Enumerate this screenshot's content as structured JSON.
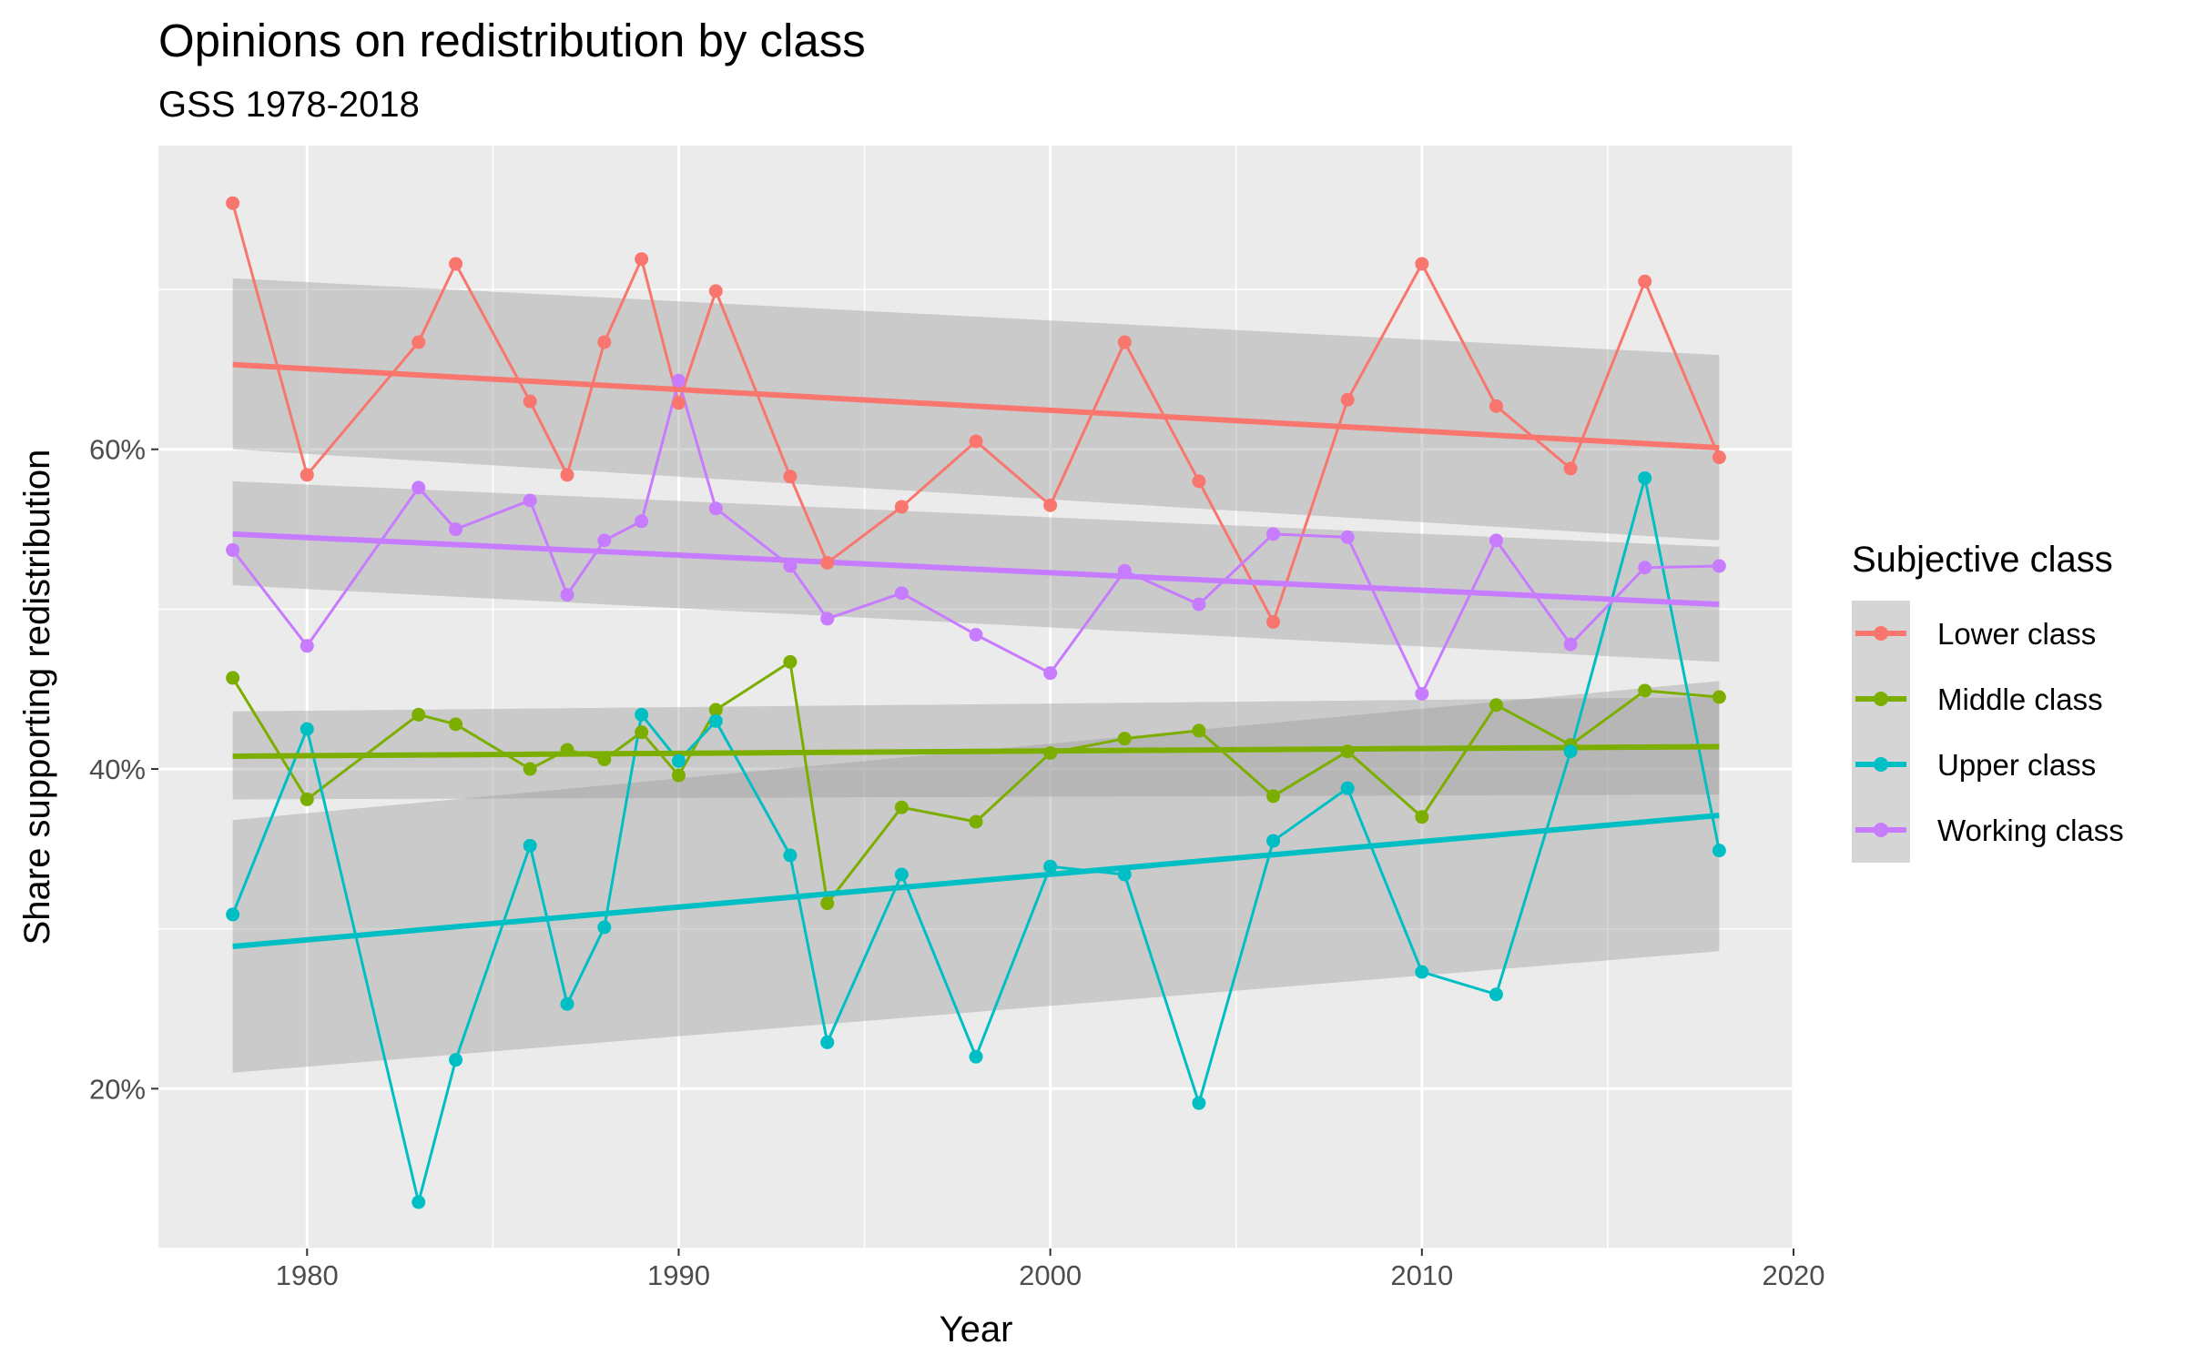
{
  "chart_data": {
    "type": "line",
    "title": "Opinions on redistribution by class",
    "subtitle": "GSS 1978-2018",
    "xlabel": "Year",
    "ylabel": "Share supporting redistribution",
    "xlim": [
      1976,
      2020
    ],
    "ylim": [
      0.1,
      0.79
    ],
    "x_ticks": [
      1980,
      1990,
      2000,
      2010,
      2020
    ],
    "x_tick_labels": [
      "1980",
      "1990",
      "2000",
      "2010",
      "2020"
    ],
    "y_ticks": [
      0.2,
      0.4,
      0.6
    ],
    "y_tick_labels": [
      "20%",
      "40%",
      "60%"
    ],
    "background": "#ebebeb",
    "grid": true,
    "legend": {
      "title": "Subjective class",
      "position": "right"
    },
    "series": [
      {
        "name": "Lower class",
        "color": "#f8766d",
        "x": [
          1978,
          1980,
          1983,
          1984,
          1986,
          1987,
          1988,
          1989,
          1990,
          1991,
          1993,
          1994,
          1996,
          1998,
          2000,
          2002,
          2004,
          2006,
          2008,
          2010,
          2012,
          2014,
          2016,
          2018
        ],
        "values": [
          0.754,
          0.584,
          0.667,
          0.716,
          0.63,
          0.584,
          0.667,
          0.719,
          0.629,
          0.699,
          0.583,
          0.529,
          0.564,
          0.605,
          0.565,
          0.667,
          0.58,
          0.492,
          0.631,
          0.716,
          0.627,
          0.588,
          0.705,
          0.595
        ],
        "trend": {
          "x": [
            1978,
            2018
          ],
          "values": [
            0.653,
            0.601
          ],
          "ci_lower": [
            0.6,
            0.543
          ],
          "ci_upper": [
            0.707,
            0.659
          ]
        }
      },
      {
        "name": "Middle class",
        "color": "#7cae00",
        "x": [
          1978,
          1980,
          1983,
          1984,
          1986,
          1987,
          1988,
          1989,
          1990,
          1991,
          1993,
          1994,
          1996,
          1998,
          2000,
          2002,
          2004,
          2006,
          2008,
          2010,
          2012,
          2014,
          2016,
          2018
        ],
        "values": [
          0.457,
          0.381,
          0.434,
          0.428,
          0.4,
          0.412,
          0.406,
          0.423,
          0.396,
          0.437,
          0.467,
          0.316,
          0.376,
          0.367,
          0.41,
          0.419,
          0.424,
          0.383,
          0.411,
          0.37,
          0.44,
          0.415,
          0.449,
          0.445
        ],
        "trend": {
          "x": [
            1978,
            2018
          ],
          "values": [
            0.408,
            0.414
          ],
          "ci_lower": [
            0.381,
            0.384
          ],
          "ci_upper": [
            0.436,
            0.445
          ]
        }
      },
      {
        "name": "Upper class",
        "color": "#00bfc4",
        "x": [
          1978,
          1980,
          1983,
          1984,
          1986,
          1987,
          1988,
          1989,
          1990,
          1991,
          1993,
          1994,
          1996,
          1998,
          2000,
          2002,
          2004,
          2006,
          2008,
          2010,
          2012,
          2014,
          2016,
          2018
        ],
        "values": [
          0.309,
          0.425,
          0.129,
          0.218,
          0.352,
          0.253,
          0.301,
          0.434,
          0.405,
          0.43,
          0.346,
          0.229,
          0.334,
          0.22,
          0.339,
          0.334,
          0.191,
          0.355,
          0.388,
          0.273,
          0.259,
          0.411,
          0.582,
          0.349
        ],
        "trend": {
          "x": [
            1978,
            2018
          ],
          "values": [
            0.289,
            0.371
          ],
          "ci_lower": [
            0.21,
            0.286
          ],
          "ci_upper": [
            0.368,
            0.455
          ]
        }
      },
      {
        "name": "Working class",
        "color": "#c77cff",
        "x": [
          1978,
          1980,
          1983,
          1984,
          1986,
          1987,
          1988,
          1989,
          1990,
          1991,
          1993,
          1994,
          1996,
          1998,
          2000,
          2002,
          2004,
          2006,
          2008,
          2010,
          2012,
          2014,
          2016,
          2018
        ],
        "values": [
          0.537,
          0.477,
          0.576,
          0.55,
          0.568,
          0.509,
          0.543,
          0.555,
          0.643,
          0.563,
          0.527,
          0.494,
          0.51,
          0.484,
          0.46,
          0.524,
          0.503,
          0.547,
          0.545,
          0.447,
          0.543,
          0.478,
          0.526,
          0.527
        ],
        "trend": {
          "x": [
            1978,
            2018
          ],
          "values": [
            0.547,
            0.503
          ],
          "ci_lower": [
            0.515,
            0.467
          ],
          "ci_upper": [
            0.58,
            0.539
          ]
        }
      }
    ]
  }
}
